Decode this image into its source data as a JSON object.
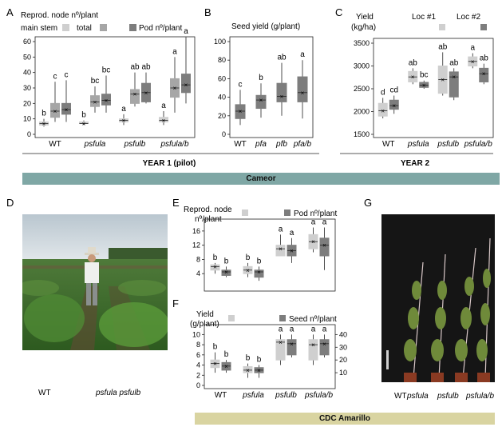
{
  "panels": {
    "A": {
      "letter": "A",
      "legend": {
        "node_title": "Reprod. node nº/plant",
        "main_stem": "main stem",
        "total": "total",
        "pod": "Pod nº/plant"
      },
      "year": "YEAR 1 (pilot)"
    },
    "B": {
      "letter": "B",
      "title": "Seed yield (g/plant)"
    },
    "C": {
      "letter": "C",
      "ylabel_1": "Yield",
      "ylabel_2": "(kg/ha)",
      "loc1": "Loc #1",
      "loc2": "Loc #2",
      "year": "YEAR 2"
    },
    "D": {
      "letter": "D",
      "caption_wt": "WT",
      "caption_mut": "psfula psfulb"
    },
    "E": {
      "letter": "E",
      "legend_node_1": "Reprod. node",
      "legend_node_2": "nº/plant",
      "legend_pod": "Pod nº/plant"
    },
    "F": {
      "letter": "F",
      "legend_yield_1": "Yield",
      "legend_yield_2": "(g/plant)",
      "legend_seed": "Seed nº/plant"
    },
    "G": {
      "letter": "G",
      "labels": [
        "WT",
        "psfula",
        "psfulb",
        "psfula/b"
      ]
    }
  },
  "banners": {
    "cameor": "Cameor",
    "cdc": "CDC Amarillo"
  },
  "colors": {
    "light": "#cfcfcf",
    "mid": "#a6a6a6",
    "dark": "#7d7d7d",
    "banner_top": "#7fa7a5",
    "banner_bottom": "#d9d4a1"
  },
  "chart_data": [
    {
      "id": "A",
      "type": "box",
      "categories": [
        "WT",
        "psfula",
        "psfulb",
        "psfula/b"
      ],
      "ylim": [
        0,
        60
      ],
      "yticks": [
        0,
        10,
        20,
        30,
        40,
        50,
        60
      ],
      "series": [
        {
          "name": "main stem",
          "tone": "light",
          "boxes": [
            [
              5,
              6,
              7,
              8,
              10
            ],
            [
              6,
              7,
              7,
              8,
              9
            ],
            [
              6,
              8,
              9,
              10,
              13
            ],
            [
              6,
              8,
              9,
              11,
              15
            ]
          ],
          "letters": [
            "b",
            "b",
            "a",
            "a"
          ]
        },
        {
          "name": "total",
          "tone": "mid",
          "boxes": [
            [
              8,
              11,
              15,
              20,
              34
            ],
            [
              14,
              18,
              21,
              25,
              31
            ],
            [
              18,
              20,
              26,
              29,
              40
            ],
            [
              14,
              24,
              30,
              36,
              50
            ]
          ],
          "letters": [
            "c",
            "bc",
            "ab",
            "a"
          ]
        },
        {
          "name": "Pod nº/plant",
          "tone": "dark",
          "boxes": [
            [
              8,
              13,
              16,
              20,
              35
            ],
            [
              14,
              19,
              22,
              26,
              38
            ],
            [
              20,
              21,
              27,
              33,
              40
            ],
            [
              20,
              27,
              32,
              39,
              63
            ]
          ],
          "letters": [
            "c",
            "bc",
            "ab",
            "a"
          ]
        }
      ]
    },
    {
      "id": "B",
      "type": "box",
      "categories": [
        "WT",
        "pfa",
        "pfb",
        "pfa/b"
      ],
      "ylim": [
        0,
        100
      ],
      "yticks": [
        0,
        20,
        40,
        60,
        80,
        100
      ],
      "series": [
        {
          "name": "Seed yield (g/plant)",
          "tone": "dark",
          "boxes": [
            [
              10,
              17,
              25,
              32,
              48
            ],
            [
              18,
              28,
              37,
              42,
              55
            ],
            [
              20,
              35,
              41,
              55,
              77
            ],
            [
              17,
              35,
              45,
              62,
              80
            ]
          ],
          "letters": [
            "c",
            "b",
            "ab",
            "a"
          ]
        }
      ]
    },
    {
      "id": "C",
      "type": "box",
      "categories": [
        "WT",
        "psfula",
        "psfulb",
        "psfula/b"
      ],
      "ylim": [
        1500,
        3500
      ],
      "yticks": [
        1500,
        2000,
        2500,
        3000,
        3500
      ],
      "series": [
        {
          "name": "Loc #1",
          "tone": "light",
          "boxes": [
            [
              1850,
              1900,
              2020,
              2180,
              2300
            ],
            [
              2600,
              2650,
              2760,
              2880,
              2950
            ],
            [
              2350,
              2400,
              2700,
              3000,
              3300
            ],
            [
              2950,
              3000,
              3100,
              3200,
              3280
            ]
          ],
          "letters": [
            "d",
            "ab",
            "ab",
            "a"
          ]
        },
        {
          "name": "Loc #2",
          "tone": "dark",
          "boxes": [
            [
              1950,
              2050,
              2130,
              2250,
              2350
            ],
            [
              2500,
              2530,
              2580,
              2640,
              2680
            ],
            [
              2250,
              2320,
              2760,
              2870,
              2950
            ],
            [
              2600,
              2650,
              2830,
              2950,
              3050
            ]
          ],
          "letters": [
            "cd",
            "bc",
            "ab",
            "ab"
          ]
        }
      ]
    },
    {
      "id": "E",
      "type": "box",
      "categories": [],
      "ylim": [
        0,
        18
      ],
      "yticks": [
        4,
        8,
        12,
        16
      ],
      "series": [
        {
          "name": "Reprod. node nº/plant",
          "tone": "light",
          "boxes": [
            [
              4,
              5,
              6,
              6.5,
              7
            ],
            [
              3,
              4,
              5,
              6,
              7
            ],
            [
              9,
              9,
              11,
              12,
              15
            ],
            [
              10,
              11,
              13,
              15,
              17
            ]
          ],
          "letters": [
            "b",
            "b",
            "a",
            "a"
          ]
        },
        {
          "name": "Pod nº/plant",
          "tone": "dark",
          "boxes": [
            [
              3,
              3.5,
              4.5,
              5,
              6
            ],
            [
              2,
              3,
              4.5,
              5,
              6
            ],
            [
              7,
              9,
              10.5,
              12,
              14
            ],
            [
              5,
              9,
              12,
              14,
              17
            ]
          ],
          "letters": [
            "b",
            "b",
            "a",
            "a"
          ]
        }
      ]
    },
    {
      "id": "F",
      "type": "box",
      "categories": [
        "WT",
        "psfula",
        "psfulb",
        "psfula/b"
      ],
      "ylim": [
        0,
        11
      ],
      "yticks": [
        0,
        2,
        4,
        6,
        8,
        10
      ],
      "y2ticks": [
        10,
        20,
        30,
        40
      ],
      "series": [
        {
          "name": "Yield (g/plant)",
          "tone": "light",
          "boxes": [
            [
              2.5,
              3.5,
              4.3,
              5,
              6.5
            ],
            [
              1.5,
              2.5,
              3,
              3.7,
              4.3
            ],
            [
              4,
              5,
              8.5,
              9,
              10
            ],
            [
              4,
              5,
              8,
              9,
              10
            ]
          ],
          "letters": [
            "b",
            "b",
            "a",
            "a"
          ]
        },
        {
          "name": "Seed nº/plant",
          "tone": "dark",
          "boxes": [
            [
              2.5,
              3,
              3.8,
              4.5,
              5
            ],
            [
              1.5,
              2.5,
              3,
              3.5,
              4
            ],
            [
              5.5,
              6,
              8.2,
              9,
              10
            ],
            [
              5.5,
              6,
              8.2,
              9,
              10
            ]
          ],
          "letters": [
            "b",
            "b",
            "a",
            "a"
          ]
        }
      ]
    }
  ]
}
